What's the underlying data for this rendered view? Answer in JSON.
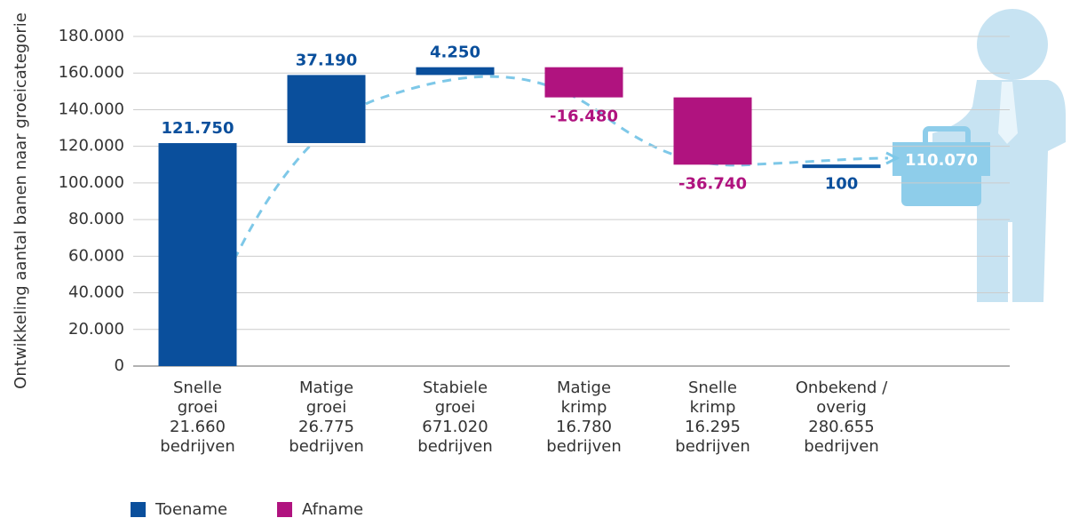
{
  "chart_data": {
    "type": "waterfall",
    "y_axis_label": "Ontwikkeling aantal banen naar groeicategorie",
    "categories": [
      [
        "Snelle",
        "groei",
        "21.660",
        "bedrijven"
      ],
      [
        "Matige",
        "groei",
        "26.775",
        "bedrijven"
      ],
      [
        "Stabiele",
        "groei",
        "671.020",
        "bedrijven"
      ],
      [
        "Matige",
        "krimp",
        "16.780",
        "bedrijven"
      ],
      [
        "Snelle",
        "krimp",
        "16.295",
        "bedrijven"
      ],
      [
        "Onbekend /",
        "overig",
        "280.655",
        "bedrijven"
      ]
    ],
    "values": [
      121750,
      37190,
      4250,
      -16480,
      -36740,
      100
    ],
    "value_labels": [
      "121.750",
      "37.190",
      "4.250",
      "-16.480",
      "-36.740",
      "100"
    ],
    "total": {
      "value": 110070,
      "label": "110.070"
    },
    "ylim": [
      0,
      180000
    ],
    "yticks": [
      0,
      {
        "value": 20000,
        "label": "20.000"
      },
      {
        "value": 40000,
        "label": "40.000"
      },
      {
        "value": 60000,
        "label": "60.000"
      },
      {
        "value": 80000,
        "label": "80.000"
      },
      {
        "value": 100000,
        "label": "100.000"
      },
      {
        "value": 120000,
        "label": "120.000"
      },
      {
        "value": 140000,
        "label": "140.000"
      },
      {
        "value": 160000,
        "label": "160.000"
      },
      {
        "value": 180000,
        "label": "180.000"
      }
    ],
    "grid": true,
    "legend": {
      "position": "bottom-left",
      "items": [
        {
          "name": "Toename",
          "color": "#0a4f9c"
        },
        {
          "name": "Afname",
          "color": "#b0137f"
        }
      ]
    }
  }
}
